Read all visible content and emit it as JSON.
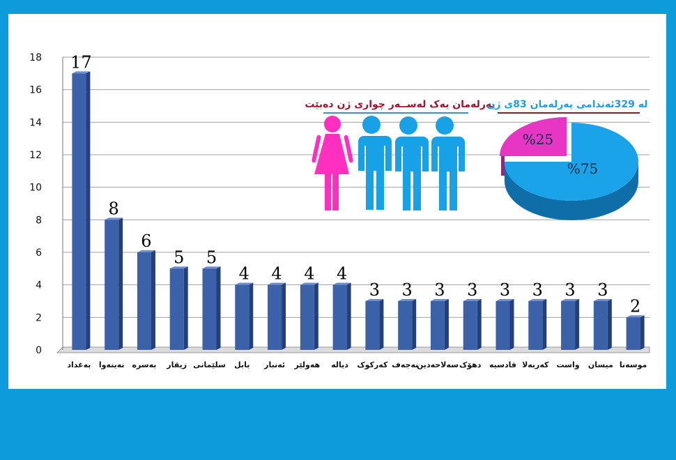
{
  "chart_data": {
    "type": "bar",
    "categories": [
      "بەغداد",
      "نەینەوا",
      "بەسرە",
      "زیقار",
      "سلێمانی",
      "بابل",
      "ئەنبار",
      "هەولێر",
      "دیالە",
      "کەرکوک",
      "نەجەف",
      "سەلاحەدین",
      "دهۆک",
      "قادسیە",
      "کەربەلا",
      "واست",
      "میسان",
      "موسەنا"
    ],
    "values": [
      17,
      8,
      6,
      5,
      5,
      4,
      4,
      4,
      4,
      3,
      3,
      3,
      3,
      3,
      3,
      3,
      3,
      2
    ],
    "value_labels": [
      "17",
      "8",
      "6",
      "5",
      "5",
      "4",
      "4",
      "4",
      "4",
      "3",
      "3",
      "3",
      "3",
      "3",
      "3",
      "3",
      "3",
      "2"
    ],
    "yticks": [
      "0",
      "2",
      "4",
      "6",
      "8",
      "10",
      "12",
      "14",
      "16",
      "18"
    ],
    "ylim": [
      0,
      18
    ],
    "grid": true,
    "bar_color": "#3b62a8"
  },
  "gender_caption": "پەرلەمان یەک لەســەر چواری ژن دەبێت",
  "pie_caption": "لە 329ئەندامی پەرلەمان 83ی ژن",
  "pie": {
    "type": "pie",
    "slices": [
      {
        "label": "%75",
        "value": 75,
        "color": "#1aa3e8"
      },
      {
        "label": "%25",
        "value": 25,
        "color": "#e735c4"
      }
    ]
  },
  "icons": [
    {
      "name": "woman-icon",
      "color": "#ff2fbf"
    },
    {
      "name": "man-icon",
      "color": "#17a2e8"
    }
  ],
  "colors": {
    "background": "#0e9bdc",
    "panel": "#ffffff",
    "caption_red": "#a6122e",
    "caption_blue": "#17a2e8"
  }
}
